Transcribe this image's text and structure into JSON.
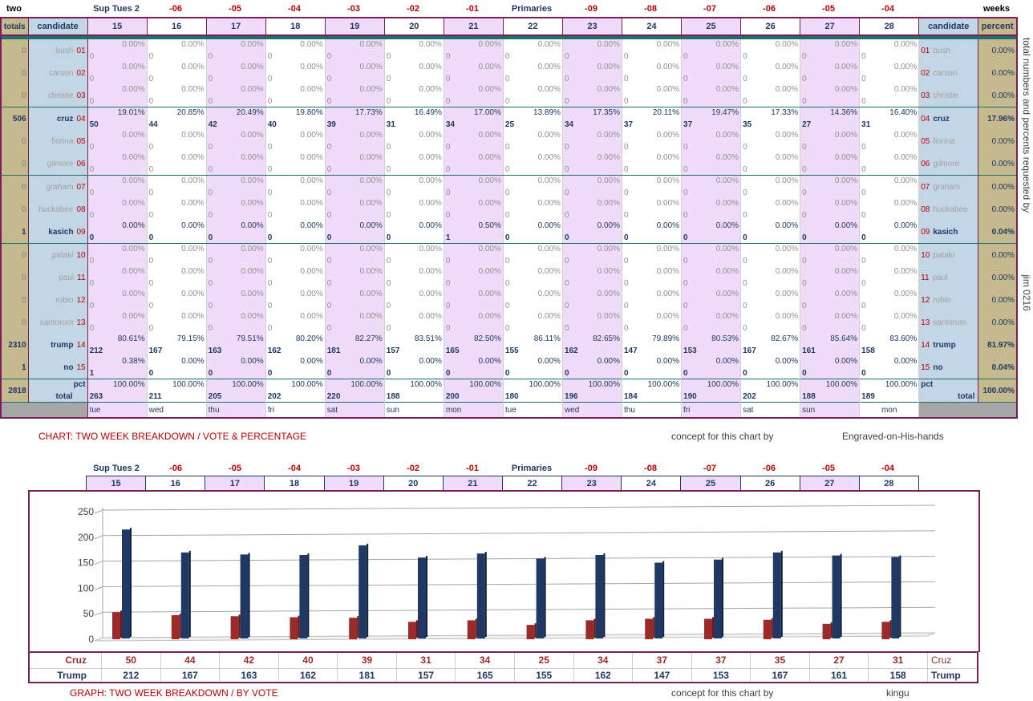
{
  "top_labels": {
    "left": "two",
    "right": "weeks",
    "weeks": [
      "Sup Tues 2",
      "-06",
      "-05",
      "-04",
      "-03",
      "-02",
      "-01",
      "Primaries",
      "-09",
      "-08",
      "-07",
      "-06",
      "-05",
      "-04"
    ]
  },
  "sheet_headers": {
    "totals": "totals",
    "candidate": "candidate",
    "candidate_right": "candidate",
    "percent": "percent",
    "days": [
      "15",
      "16",
      "17",
      "18",
      "19",
      "20",
      "21",
      "22",
      "23",
      "24",
      "25",
      "26",
      "27",
      "28"
    ]
  },
  "candidates": [
    {
      "name": "bush",
      "num": "01",
      "total": "0",
      "percent": "0.00%",
      "active": false,
      "vals": [
        "0",
        "0",
        "0",
        "0",
        "0",
        "0",
        "0",
        "0",
        "0",
        "0",
        "0",
        "0",
        "0",
        "0"
      ],
      "pcts": [
        "0.00%",
        "0.00%",
        "0.00%",
        "0.00%",
        "0.00%",
        "0.00%",
        "0.00%",
        "0.00%",
        "0.00%",
        "0.00%",
        "0.00%",
        "0.00%",
        "0.00%",
        "0.00%"
      ]
    },
    {
      "name": "carson",
      "num": "02",
      "total": "0",
      "percent": "0.00%",
      "active": false,
      "vals": [
        "0",
        "0",
        "0",
        "0",
        "0",
        "0",
        "0",
        "0",
        "0",
        "0",
        "0",
        "0",
        "0",
        "0"
      ],
      "pcts": [
        "0.00%",
        "0.00%",
        "0.00%",
        "0.00%",
        "0.00%",
        "0.00%",
        "0.00%",
        "0.00%",
        "0.00%",
        "0.00%",
        "0.00%",
        "0.00%",
        "0.00%",
        "0.00%"
      ]
    },
    {
      "name": "christie",
      "num": "03",
      "total": "0",
      "percent": "0.00%",
      "active": false,
      "vals": [
        "0",
        "0",
        "0",
        "0",
        "0",
        "0",
        "0",
        "0",
        "0",
        "0",
        "0",
        "0",
        "0",
        "0"
      ],
      "pcts": [
        "0.00%",
        "0.00%",
        "0.00%",
        "0.00%",
        "0.00%",
        "0.00%",
        "0.00%",
        "0.00%",
        "0.00%",
        "0.00%",
        "0.00%",
        "0.00%",
        "0.00%",
        "0.00%"
      ]
    },
    {
      "name": "cruz",
      "num": "04",
      "total": "506",
      "percent": "17.96%",
      "active": true,
      "vals": [
        "50",
        "44",
        "42",
        "40",
        "39",
        "31",
        "34",
        "25",
        "34",
        "37",
        "37",
        "35",
        "27",
        "31"
      ],
      "pcts": [
        "19.01%",
        "20.85%",
        "20.49%",
        "19.80%",
        "17.73%",
        "16.49%",
        "17.00%",
        "13.89%",
        "17.35%",
        "20.11%",
        "19.47%",
        "17.33%",
        "14.36%",
        "16.40%"
      ]
    },
    {
      "name": "fiorina",
      "num": "05",
      "total": "0",
      "percent": "0.00%",
      "active": false,
      "vals": [
        "0",
        "0",
        "0",
        "0",
        "0",
        "0",
        "0",
        "0",
        "0",
        "0",
        "0",
        "0",
        "0",
        "0"
      ],
      "pcts": [
        "0.00%",
        "0.00%",
        "0.00%",
        "0.00%",
        "0.00%",
        "0.00%",
        "0.00%",
        "0.00%",
        "0.00%",
        "0.00%",
        "0.00%",
        "0.00%",
        "0.00%",
        "0.00%"
      ]
    },
    {
      "name": "gilmore",
      "num": "06",
      "total": "0",
      "percent": "0.00%",
      "active": false,
      "vals": [
        "0",
        "0",
        "0",
        "0",
        "0",
        "0",
        "0",
        "0",
        "0",
        "0",
        "0",
        "0",
        "0",
        "0"
      ],
      "pcts": [
        "0.00%",
        "0.00%",
        "0.00%",
        "0.00%",
        "0.00%",
        "0.00%",
        "0.00%",
        "0.00%",
        "0.00%",
        "0.00%",
        "0.00%",
        "0.00%",
        "0.00%",
        "0.00%"
      ]
    },
    {
      "name": "graham",
      "num": "07",
      "total": "0",
      "percent": "0.00%",
      "active": false,
      "vals": [
        "0",
        "0",
        "0",
        "0",
        "0",
        "0",
        "0",
        "0",
        "0",
        "0",
        "0",
        "0",
        "0",
        "0"
      ],
      "pcts": [
        "0.00%",
        "0.00%",
        "0.00%",
        "0.00%",
        "0.00%",
        "0.00%",
        "0.00%",
        "0.00%",
        "0.00%",
        "0.00%",
        "0.00%",
        "0.00%",
        "0.00%",
        "0.00%"
      ]
    },
    {
      "name": "huckabee",
      "num": "08",
      "total": "0",
      "percent": "0.00%",
      "active": false,
      "vals": [
        "0",
        "0",
        "0",
        "0",
        "0",
        "0",
        "0",
        "0",
        "0",
        "0",
        "0",
        "0",
        "0",
        "0"
      ],
      "pcts": [
        "0.00%",
        "0.00%",
        "0.00%",
        "0.00%",
        "0.00%",
        "0.00%",
        "0.00%",
        "0.00%",
        "0.00%",
        "0.00%",
        "0.00%",
        "0.00%",
        "0.00%",
        "0.00%"
      ]
    },
    {
      "name": "kasich",
      "num": "09",
      "total": "1",
      "percent": "0.04%",
      "active": true,
      "vals": [
        "0",
        "0",
        "0",
        "0",
        "0",
        "0",
        "1",
        "0",
        "0",
        "0",
        "0",
        "0",
        "0",
        "0"
      ],
      "pcts": [
        "0.00%",
        "0.00%",
        "0.00%",
        "0.00%",
        "0.00%",
        "0.00%",
        "0.50%",
        "0.00%",
        "0.00%",
        "0.00%",
        "0.00%",
        "0.00%",
        "0.00%",
        "0.00%"
      ]
    },
    {
      "name": "pataki",
      "num": "10",
      "total": "0",
      "percent": "0.00%",
      "active": false,
      "vals": [
        "0",
        "0",
        "0",
        "0",
        "0",
        "0",
        "0",
        "0",
        "0",
        "0",
        "0",
        "0",
        "0",
        "0"
      ],
      "pcts": [
        "0.00%",
        "0.00%",
        "0.00%",
        "0.00%",
        "0.00%",
        "0.00%",
        "0.00%",
        "0.00%",
        "0.00%",
        "0.00%",
        "0.00%",
        "0.00%",
        "0.00%",
        "0.00%"
      ]
    },
    {
      "name": "paul",
      "num": "11",
      "total": "0",
      "percent": "0.00%",
      "active": false,
      "vals": [
        "0",
        "0",
        "0",
        "0",
        "0",
        "0",
        "0",
        "0",
        "0",
        "0",
        "0",
        "0",
        "0",
        "0"
      ],
      "pcts": [
        "0.00%",
        "0.00%",
        "0.00%",
        "0.00%",
        "0.00%",
        "0.00%",
        "0.00%",
        "0.00%",
        "0.00%",
        "0.00%",
        "0.00%",
        "0.00%",
        "0.00%",
        "0.00%"
      ]
    },
    {
      "name": "rubio",
      "num": "12",
      "total": "0",
      "percent": "0.00%",
      "active": false,
      "vals": [
        "0",
        "0",
        "0",
        "0",
        "0",
        "0",
        "0",
        "0",
        "0",
        "0",
        "0",
        "0",
        "0",
        "0"
      ],
      "pcts": [
        "0.00%",
        "0.00%",
        "0.00%",
        "0.00%",
        "0.00%",
        "0.00%",
        "0.00%",
        "0.00%",
        "0.00%",
        "0.00%",
        "0.00%",
        "0.00%",
        "0.00%",
        "0.00%"
      ]
    },
    {
      "name": "santorum",
      "num": "13",
      "total": "0",
      "percent": "0.00%",
      "active": false,
      "vals": [
        "0",
        "0",
        "0",
        "0",
        "0",
        "0",
        "0",
        "0",
        "0",
        "0",
        "0",
        "0",
        "0",
        "0"
      ],
      "pcts": [
        "0.00%",
        "0.00%",
        "0.00%",
        "0.00%",
        "0.00%",
        "0.00%",
        "0.00%",
        "0.00%",
        "0.00%",
        "0.00%",
        "0.00%",
        "0.00%",
        "0.00%",
        "0.00%"
      ]
    },
    {
      "name": "trump",
      "num": "14",
      "total": "2310",
      "percent": "81.97%",
      "active": true,
      "vals": [
        "212",
        "167",
        "163",
        "162",
        "181",
        "157",
        "165",
        "155",
        "162",
        "147",
        "153",
        "167",
        "161",
        "158"
      ],
      "pcts": [
        "80.61%",
        "79.15%",
        "79.51%",
        "80.20%",
        "82.27%",
        "83.51%",
        "82.50%",
        "86.11%",
        "82.65%",
        "79.89%",
        "80.53%",
        "82.67%",
        "85.64%",
        "83.60%"
      ]
    },
    {
      "name": "no",
      "num": "15",
      "total": "1",
      "percent": "0.04%",
      "active": true,
      "vals": [
        "1",
        "0",
        "0",
        "0",
        "0",
        "0",
        "0",
        "0",
        "0",
        "0",
        "0",
        "0",
        "0",
        "0"
      ],
      "pcts": [
        "0.38%",
        "0.00%",
        "0.00%",
        "0.00%",
        "0.00%",
        "0.00%",
        "0.00%",
        "0.00%",
        "0.00%",
        "0.00%",
        "0.00%",
        "0.00%",
        "0.00%",
        "0.00%"
      ]
    }
  ],
  "totals_row": {
    "grand_total": "2818",
    "label": "total",
    "pct_label": "pct",
    "pct_label_right": "pct",
    "label_right": "total",
    "percent": "100.00%",
    "vals": [
      "263",
      "211",
      "205",
      "202",
      "220",
      "188",
      "200",
      "180",
      "196",
      "184",
      "190",
      "202",
      "188",
      "189"
    ],
    "pct": "100.00%"
  },
  "weekdays": [
    "tue",
    "wed",
    "thu",
    "fri",
    "sat",
    "sun",
    "mon",
    "tue",
    "wed",
    "thu",
    "fri",
    "sat",
    "sun",
    "mon"
  ],
  "side_note": "total numbers and percents requested by",
  "side_note2": "jim 0216",
  "caption1": {
    "left": "CHART: TWO WEEK BREAKDOWN / VOTE & PERCENTAGE",
    "mid": "concept for this chart by",
    "right": "Engraved-on-His-hands"
  },
  "caption2": {
    "left": "GRAPH: TWO WEEK BREAKDOWN / BY VOTE",
    "mid": "concept for this chart by",
    "right": "kingu"
  },
  "colors": {
    "cruz": "#9b2b2b",
    "trump": "#1f3864",
    "frame": "#7a1e5a",
    "pink": "#f0dcfa",
    "tan": "#c5b98e",
    "blue": "#c3d6e6"
  },
  "chart_data": {
    "type": "bar",
    "categories": [
      "15",
      "16",
      "17",
      "18",
      "19",
      "20",
      "21",
      "22",
      "23",
      "24",
      "25",
      "26",
      "27",
      "28"
    ],
    "series": [
      {
        "name": "Cruz",
        "values": [
          50,
          44,
          42,
          40,
          39,
          31,
          34,
          25,
          34,
          37,
          37,
          35,
          27,
          31
        ]
      },
      {
        "name": "Trump",
        "values": [
          212,
          167,
          163,
          162,
          181,
          157,
          165,
          155,
          162,
          147,
          153,
          167,
          161,
          158
        ]
      }
    ],
    "yticks": [
      "250",
      "200",
      "150",
      "100",
      "50",
      "0"
    ],
    "ylim": [
      0,
      250
    ],
    "grid": true
  }
}
